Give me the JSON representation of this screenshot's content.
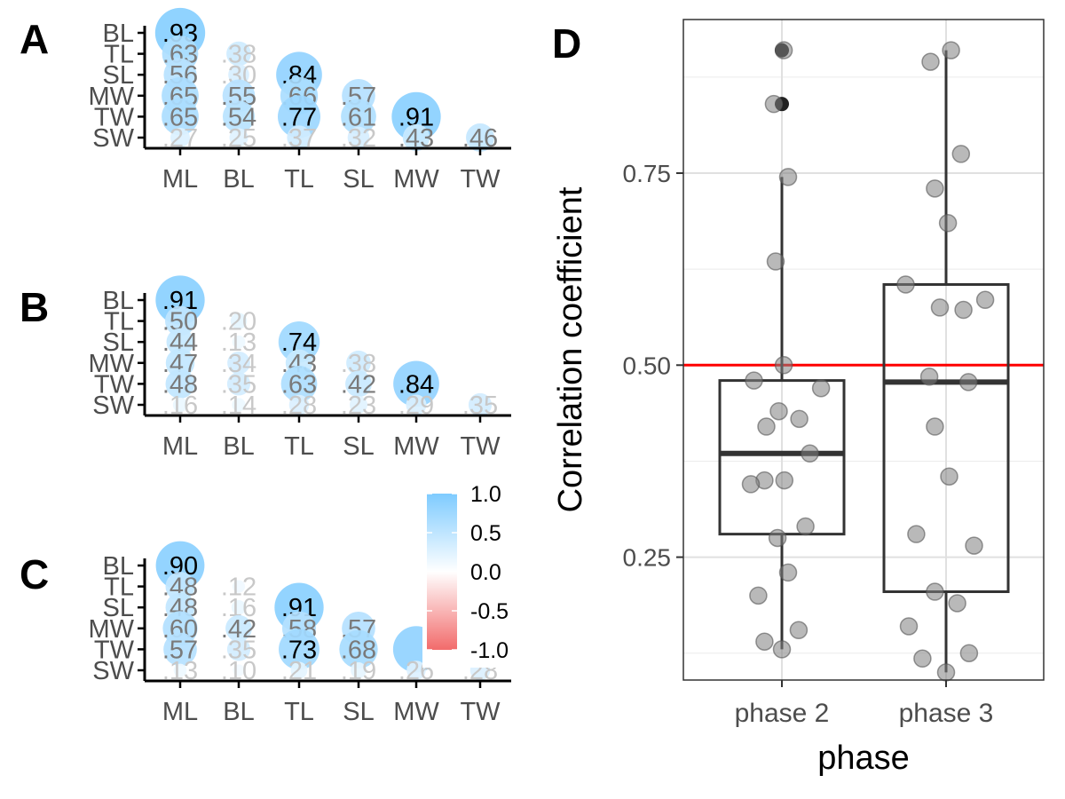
{
  "chart_data": [
    {
      "panel": "A",
      "type": "heatmap",
      "x_categories": [
        "ML",
        "BL",
        "TL",
        "SL",
        "MW",
        "TW"
      ],
      "y_categories": [
        "BL",
        "TL",
        "SL",
        "MW",
        "TW",
        "SW"
      ],
      "cells": [
        {
          "x": "ML",
          "y": "BL",
          "value": 0.93,
          "label": ".93"
        },
        {
          "x": "ML",
          "y": "TL",
          "value": 0.63,
          "label": ".63"
        },
        {
          "x": "ML",
          "y": "SL",
          "value": 0.56,
          "label": ".56"
        },
        {
          "x": "ML",
          "y": "MW",
          "value": 0.65,
          "label": ".65"
        },
        {
          "x": "ML",
          "y": "TW",
          "value": 0.65,
          "label": ".65"
        },
        {
          "x": "ML",
          "y": "SW",
          "value": 0.27,
          "label": ".27"
        },
        {
          "x": "BL",
          "y": "TL",
          "value": 0.38,
          "label": ".38"
        },
        {
          "x": "BL",
          "y": "SL",
          "value": 0.3,
          "label": ".30"
        },
        {
          "x": "BL",
          "y": "MW",
          "value": 0.55,
          "label": ".55"
        },
        {
          "x": "BL",
          "y": "TW",
          "value": 0.54,
          "label": ".54"
        },
        {
          "x": "BL",
          "y": "SW",
          "value": 0.25,
          "label": ".25"
        },
        {
          "x": "TL",
          "y": "SL",
          "value": 0.84,
          "label": ".84"
        },
        {
          "x": "TL",
          "y": "MW",
          "value": 0.66,
          "label": ".66"
        },
        {
          "x": "TL",
          "y": "TW",
          "value": 0.77,
          "label": ".77"
        },
        {
          "x": "TL",
          "y": "SW",
          "value": 0.37,
          "label": ".37"
        },
        {
          "x": "SL",
          "y": "MW",
          "value": 0.57,
          "label": ".57"
        },
        {
          "x": "SL",
          "y": "TW",
          "value": 0.61,
          "label": ".61"
        },
        {
          "x": "SL",
          "y": "SW",
          "value": 0.32,
          "label": ".32"
        },
        {
          "x": "MW",
          "y": "TW",
          "value": 0.91,
          "label": ".91"
        },
        {
          "x": "MW",
          "y": "SW",
          "value": 0.43,
          "label": ".43"
        },
        {
          "x": "TW",
          "y": "SW",
          "value": 0.46,
          "label": ".46"
        }
      ]
    },
    {
      "panel": "B",
      "type": "heatmap",
      "x_categories": [
        "ML",
        "BL",
        "TL",
        "SL",
        "MW",
        "TW"
      ],
      "y_categories": [
        "BL",
        "TL",
        "SL",
        "MW",
        "TW",
        "SW"
      ],
      "cells": [
        {
          "x": "ML",
          "y": "BL",
          "value": 0.91,
          "label": ".91"
        },
        {
          "x": "ML",
          "y": "TL",
          "value": 0.5,
          "label": ".50"
        },
        {
          "x": "ML",
          "y": "SL",
          "value": 0.44,
          "label": ".44"
        },
        {
          "x": "ML",
          "y": "MW",
          "value": 0.47,
          "label": ".47"
        },
        {
          "x": "ML",
          "y": "TW",
          "value": 0.48,
          "label": ".48"
        },
        {
          "x": "ML",
          "y": "SW",
          "value": 0.16,
          "label": ".16"
        },
        {
          "x": "BL",
          "y": "TL",
          "value": 0.2,
          "label": ".20"
        },
        {
          "x": "BL",
          "y": "SL",
          "value": 0.13,
          "label": ".13"
        },
        {
          "x": "BL",
          "y": "MW",
          "value": 0.34,
          "label": ".34"
        },
        {
          "x": "BL",
          "y": "TW",
          "value": 0.35,
          "label": ".35"
        },
        {
          "x": "BL",
          "y": "SW",
          "value": 0.14,
          "label": ".14"
        },
        {
          "x": "TL",
          "y": "SL",
          "value": 0.74,
          "label": ".74"
        },
        {
          "x": "TL",
          "y": "MW",
          "value": 0.43,
          "label": ".43"
        },
        {
          "x": "TL",
          "y": "TW",
          "value": 0.63,
          "label": ".63"
        },
        {
          "x": "TL",
          "y": "SW",
          "value": 0.28,
          "label": ".28"
        },
        {
          "x": "SL",
          "y": "MW",
          "value": 0.38,
          "label": ".38"
        },
        {
          "x": "SL",
          "y": "TW",
          "value": 0.42,
          "label": ".42"
        },
        {
          "x": "SL",
          "y": "SW",
          "value": 0.23,
          "label": ".23"
        },
        {
          "x": "MW",
          "y": "TW",
          "value": 0.84,
          "label": ".84"
        },
        {
          "x": "MW",
          "y": "SW",
          "value": 0.29,
          "label": ".29"
        },
        {
          "x": "TW",
          "y": "SW",
          "value": 0.35,
          "label": ".35"
        }
      ]
    },
    {
      "panel": "C",
      "type": "heatmap",
      "x_categories": [
        "ML",
        "BL",
        "TL",
        "SL",
        "MW",
        "TW"
      ],
      "y_categories": [
        "BL",
        "TL",
        "SL",
        "MW",
        "TW",
        "SW"
      ],
      "cells": [
        {
          "x": "ML",
          "y": "BL",
          "value": 0.9,
          "label": ".90"
        },
        {
          "x": "ML",
          "y": "TL",
          "value": 0.48,
          "label": ".48"
        },
        {
          "x": "ML",
          "y": "SL",
          "value": 0.48,
          "label": ".48"
        },
        {
          "x": "ML",
          "y": "MW",
          "value": 0.6,
          "label": ".60"
        },
        {
          "x": "ML",
          "y": "TW",
          "value": 0.57,
          "label": ".57"
        },
        {
          "x": "ML",
          "y": "SW",
          "value": 0.13,
          "label": ".13"
        },
        {
          "x": "BL",
          "y": "TL",
          "value": 0.12,
          "label": ".12"
        },
        {
          "x": "BL",
          "y": "SL",
          "value": 0.16,
          "label": ".16"
        },
        {
          "x": "BL",
          "y": "MW",
          "value": 0.42,
          "label": ".42"
        },
        {
          "x": "BL",
          "y": "TW",
          "value": 0.35,
          "label": ".35"
        },
        {
          "x": "BL",
          "y": "SW",
          "value": 0.1,
          "label": ".10"
        },
        {
          "x": "TL",
          "y": "SL",
          "value": 0.91,
          "label": ".91"
        },
        {
          "x": "TL",
          "y": "MW",
          "value": 0.58,
          "label": ".58"
        },
        {
          "x": "TL",
          "y": "TW",
          "value": 0.73,
          "label": ".73"
        },
        {
          "x": "TL",
          "y": "SW",
          "value": 0.21,
          "label": ".21"
        },
        {
          "x": "SL",
          "y": "MW",
          "value": 0.57,
          "label": ".57"
        },
        {
          "x": "SL",
          "y": "TW",
          "value": 0.68,
          "label": ".68"
        },
        {
          "x": "SL",
          "y": "SW",
          "value": 0.19,
          "label": ".19"
        },
        {
          "x": "MW",
          "y": "TW",
          "value": 0.85,
          "label": ""
        },
        {
          "x": "MW",
          "y": "SW",
          "value": 0.26,
          "label": ".26"
        },
        {
          "x": "TW",
          "y": "SW",
          "value": 0.28,
          "label": ".28"
        }
      ]
    },
    {
      "panel": "D",
      "type": "box",
      "xlabel": "phase",
      "ylabel": "Correlation coefficient",
      "categories": [
        "phase 2",
        "phase 3"
      ],
      "ylim": [
        0.09,
        0.95
      ],
      "yticks": [
        0.25,
        0.5,
        0.75
      ],
      "ytick_labels": [
        "0.25",
        "0.50",
        "0.75"
      ],
      "reference_line": {
        "y": 0.5,
        "color": "#ff0000"
      },
      "grid": true,
      "boxes": [
        {
          "category": "phase 2",
          "min": 0.13,
          "q1": 0.28,
          "median": 0.385,
          "q3": 0.48,
          "max": 0.745,
          "outliers": [
            0.91,
            0.84
          ]
        },
        {
          "category": "phase 3",
          "min": 0.1,
          "q1": 0.205,
          "median": 0.478,
          "q3": 0.605,
          "max": 0.91,
          "outliers": []
        }
      ],
      "points": [
        {
          "category": "phase 2",
          "jitter": -0.45,
          "y": 0.48
        },
        {
          "category": "phase 2",
          "jitter": 0.63,
          "y": 0.47
        },
        {
          "category": "phase 2",
          "jitter": -0.05,
          "y": 0.44
        },
        {
          "category": "phase 2",
          "jitter": 0.28,
          "y": 0.43
        },
        {
          "category": "phase 2",
          "jitter": -0.25,
          "y": 0.42
        },
        {
          "category": "phase 2",
          "jitter": 0.45,
          "y": 0.385
        },
        {
          "category": "phase 2",
          "jitter": -0.28,
          "y": 0.35
        },
        {
          "category": "phase 2",
          "jitter": 0.04,
          "y": 0.35
        },
        {
          "category": "phase 2",
          "jitter": -0.5,
          "y": 0.345
        },
        {
          "category": "phase 2",
          "jitter": 0.38,
          "y": 0.29
        },
        {
          "category": "phase 2",
          "jitter": -0.07,
          "y": 0.275
        },
        {
          "category": "phase 2",
          "jitter": 0.1,
          "y": 0.23
        },
        {
          "category": "phase 2",
          "jitter": -0.38,
          "y": 0.2
        },
        {
          "category": "phase 2",
          "jitter": 0.27,
          "y": 0.155
        },
        {
          "category": "phase 2",
          "jitter": -0.28,
          "y": 0.14
        },
        {
          "category": "phase 2",
          "jitter": 0.0,
          "y": 0.13
        },
        {
          "category": "phase 2",
          "jitter": 0.03,
          "y": 0.91
        },
        {
          "category": "phase 2",
          "jitter": -0.13,
          "y": 0.84
        },
        {
          "category": "phase 2",
          "jitter": 0.1,
          "y": 0.745
        },
        {
          "category": "phase 2",
          "jitter": -0.1,
          "y": 0.635
        },
        {
          "category": "phase 2",
          "jitter": 0.03,
          "y": 0.5
        },
        {
          "category": "phase 3",
          "jitter": 0.08,
          "y": 0.91
        },
        {
          "category": "phase 3",
          "jitter": -0.25,
          "y": 0.895
        },
        {
          "category": "phase 3",
          "jitter": 0.24,
          "y": 0.775
        },
        {
          "category": "phase 3",
          "jitter": -0.18,
          "y": 0.73
        },
        {
          "category": "phase 3",
          "jitter": 0.03,
          "y": 0.685
        },
        {
          "category": "phase 3",
          "jitter": -0.65,
          "y": 0.605
        },
        {
          "category": "phase 3",
          "jitter": 0.63,
          "y": 0.585
        },
        {
          "category": "phase 3",
          "jitter": -0.1,
          "y": 0.575
        },
        {
          "category": "phase 3",
          "jitter": 0.28,
          "y": 0.572
        },
        {
          "category": "phase 3",
          "jitter": -0.27,
          "y": 0.485
        },
        {
          "category": "phase 3",
          "jitter": 0.36,
          "y": 0.478
        },
        {
          "category": "phase 3",
          "jitter": -0.18,
          "y": 0.42
        },
        {
          "category": "phase 3",
          "jitter": 0.05,
          "y": 0.355
        },
        {
          "category": "phase 3",
          "jitter": -0.48,
          "y": 0.28
        },
        {
          "category": "phase 3",
          "jitter": 0.45,
          "y": 0.265
        },
        {
          "category": "phase 3",
          "jitter": -0.18,
          "y": 0.205
        },
        {
          "category": "phase 3",
          "jitter": 0.18,
          "y": 0.19
        },
        {
          "category": "phase 3",
          "jitter": -0.6,
          "y": 0.16
        },
        {
          "category": "phase 3",
          "jitter": 0.37,
          "y": 0.125
        },
        {
          "category": "phase 3",
          "jitter": -0.38,
          "y": 0.118
        },
        {
          "category": "phase 3",
          "jitter": 0.0,
          "y": 0.1
        }
      ]
    }
  ],
  "legend": {
    "type": "colorbar",
    "tick_labels": [
      "1.0",
      "0.5",
      "0.0",
      "-0.5",
      "-1.0"
    ],
    "tick_values": [
      1.0,
      0.5,
      0.0,
      -0.5,
      -1.0
    ],
    "colors": {
      "high": "#7ecbff",
      "mid": "#ffffff",
      "low": "#f26b6b"
    }
  }
}
